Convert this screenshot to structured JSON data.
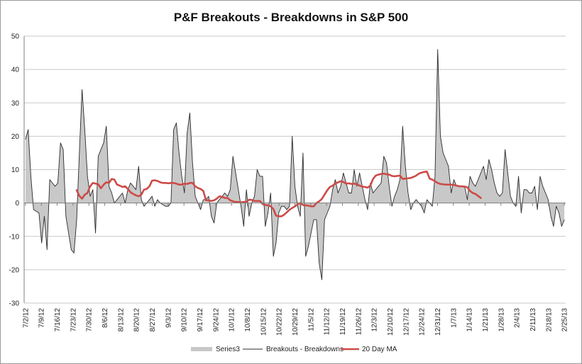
{
  "chart_data": {
    "type": "line",
    "title": "P&F Breakouts - Breakdowns in S&P 500",
    "xlabel": "",
    "ylabel": "",
    "ylim": [
      -30,
      50
    ],
    "yticks": [
      -30,
      -20,
      -10,
      0,
      10,
      20,
      30,
      40,
      50
    ],
    "grid": "horizontal",
    "legend_position": "bottom",
    "colors": {
      "area_fill": "#c8c8c8",
      "area_stroke": "#9a9a9a",
      "line": "#2b2b2b",
      "ma": "#cc4b47",
      "grid": "#c9c9c9",
      "axis": "#808080"
    },
    "x_labels": [
      "7/2/12",
      "7/9/12",
      "7/16/12",
      "7/23/12",
      "7/30/12",
      "8/6/12",
      "8/13/12",
      "8/20/12",
      "8/27/12",
      "9/3/12",
      "9/10/12",
      "9/17/12",
      "9/24/12",
      "10/1/12",
      "10/8/12",
      "10/15/12",
      "10/22/12",
      "10/29/12",
      "11/5/12",
      "11/12/12",
      "11/19/12",
      "11/26/12",
      "12/3/12",
      "12/10/12",
      "12/17/12",
      "12/24/12",
      "12/31/12",
      "1/7/13",
      "1/14/13",
      "1/21/13",
      "1/28/13",
      "2/4/13",
      "2/11/13",
      "2/18/13",
      "2/25/13"
    ],
    "series": [
      {
        "name": "Series3",
        "kind": "area",
        "values": [
          19,
          22,
          8,
          -2,
          -2.5,
          -3,
          -12,
          -4,
          -14,
          7,
          6,
          5,
          6,
          18,
          16,
          -4,
          -9,
          -14,
          -15,
          -5,
          15,
          34,
          22,
          8,
          2,
          4,
          -9,
          14,
          16,
          18,
          23,
          5,
          3,
          0,
          1,
          2,
          3,
          0,
          4,
          6,
          5,
          4,
          11,
          1,
          -1,
          0,
          1,
          2,
          -1,
          1,
          0,
          -0.5,
          -1,
          -1,
          0,
          22,
          24,
          15,
          8,
          3,
          21,
          27,
          12,
          2,
          0,
          -2,
          1,
          1,
          2,
          -4,
          -6,
          0,
          1,
          2,
          3,
          2,
          4,
          14,
          9,
          4,
          -1,
          -7,
          4,
          -4,
          0,
          2,
          10,
          8,
          8,
          -7,
          -3,
          3,
          -16,
          -12,
          -3,
          -1,
          -1,
          -2,
          -1,
          20,
          5,
          -1,
          -4,
          15,
          -16,
          -13,
          -9,
          -5,
          -5,
          -18,
          -23,
          -5,
          -3,
          -1,
          4,
          7,
          3,
          5,
          9,
          6,
          3,
          3,
          10,
          5,
          9,
          5,
          1,
          -2,
          6,
          3,
          4,
          5,
          6,
          14,
          12,
          5,
          -1,
          2,
          4,
          7,
          23,
          11,
          3,
          -2,
          0,
          1,
          0,
          -1,
          -3,
          1,
          0,
          -1,
          8,
          46,
          20,
          15,
          13,
          11,
          3,
          7,
          5,
          5,
          5,
          5,
          1,
          8,
          6,
          5,
          7,
          9,
          11,
          7,
          13,
          10,
          6,
          3,
          2,
          3,
          16,
          9,
          2,
          0,
          -1,
          8,
          -3,
          4,
          4,
          3,
          3,
          5,
          -2,
          8,
          5,
          3,
          1,
          -4,
          -7,
          -1,
          -3,
          -7,
          -5
        ]
      },
      {
        "name": "Breakouts - Breakdowns",
        "kind": "line",
        "values": [
          19,
          22,
          8,
          -2,
          -2.5,
          -3,
          -12,
          -4,
          -14,
          7,
          6,
          5,
          6,
          18,
          16,
          -4,
          -9,
          -14,
          -15,
          -5,
          15,
          34,
          22,
          8,
          2,
          4,
          -9,
          14,
          16,
          18,
          23,
          5,
          3,
          0,
          1,
          2,
          3,
          0,
          4,
          6,
          5,
          4,
          11,
          1,
          -1,
          0,
          1,
          2,
          -1,
          1,
          0,
          -0.5,
          -1,
          -1,
          0,
          22,
          24,
          15,
          8,
          3,
          21,
          27,
          12,
          2,
          0,
          -2,
          1,
          1,
          2,
          -4,
          -6,
          0,
          1,
          2,
          3,
          2,
          4,
          14,
          9,
          4,
          -1,
          -7,
          4,
          -4,
          0,
          2,
          10,
          8,
          8,
          -7,
          -3,
          3,
          -16,
          -12,
          -3,
          -1,
          -1,
          -2,
          -1,
          20,
          5,
          -1,
          -4,
          15,
          -16,
          -13,
          -9,
          -5,
          -5,
          -18,
          -23,
          -5,
          -3,
          -1,
          4,
          7,
          3,
          5,
          9,
          6,
          3,
          3,
          10,
          5,
          9,
          5,
          1,
          -2,
          6,
          3,
          4,
          5,
          6,
          14,
          12,
          5,
          -1,
          2,
          4,
          7,
          23,
          11,
          3,
          -2,
          0,
          1,
          0,
          -1,
          -3,
          1,
          0,
          -1,
          8,
          46,
          20,
          15,
          13,
          11,
          3,
          7,
          5,
          5,
          5,
          5,
          1,
          8,
          6,
          5,
          7,
          9,
          11,
          7,
          13,
          10,
          6,
          3,
          2,
          3,
          16,
          9,
          2,
          0,
          -1,
          8,
          -3,
          4,
          4,
          3,
          3,
          5,
          -2,
          8,
          5,
          3,
          1,
          -4,
          -7,
          -1,
          -3,
          -7,
          -5
        ]
      },
      {
        "name": "20 Day MA",
        "kind": "line",
        "start_index": 19,
        "values": [
          3.8,
          2.1,
          1.3,
          2.5,
          3,
          5,
          6,
          5.8,
          5.6,
          4.4,
          5.5,
          6.2,
          6,
          7.2,
          7,
          5.5,
          5.2,
          4.8,
          5,
          4.2,
          3.2,
          2.7,
          2.3,
          2,
          2.5,
          4,
          4.2,
          5,
          6.7,
          6.8,
          6.6,
          6.2,
          6,
          6,
          5.9,
          6,
          6,
          5.8,
          5.5,
          5.5,
          5.8,
          5.7,
          6,
          6,
          5,
          4.5,
          4.2,
          3.6,
          0.8,
          0.8,
          0.6,
          0.8,
          1.3,
          2,
          1.8,
          1.5,
          1.5,
          0.8,
          0.5,
          0.3,
          0.3,
          0.2,
          0.3,
          0.3,
          1,
          0.9,
          0.6,
          0.6,
          0.6,
          -0.3,
          -0.6,
          -0.7,
          -1,
          -1.8,
          -3.8,
          -4,
          -4,
          -3.5,
          -2.8,
          -2,
          -1.5,
          -1,
          -0.4,
          0,
          -0.6,
          -0.7,
          -0.8,
          -1,
          -1,
          0,
          0.5,
          1.2,
          2.5,
          3.8,
          4.8,
          5.2,
          5.8,
          6.2,
          6.5,
          6.3,
          5.8,
          5.9,
          5.7,
          5.8,
          5.6,
          5.2,
          4.9,
          4.8,
          4.6,
          5.2,
          7.2,
          8.2,
          8.5,
          8.7,
          8.8,
          8.6,
          8.5,
          8.1,
          8,
          8.1,
          8.2,
          7.2,
          7.3,
          7.4,
          7.5,
          7.8,
          8.2,
          8.8,
          9.1,
          9.3,
          9.4,
          7.3,
          7,
          6.5,
          6,
          5.7,
          5.6,
          5.5,
          5.5,
          5.5,
          5.4,
          5.2,
          5,
          5,
          4.9,
          4.7,
          3.6,
          3,
          2.7,
          2.1,
          1.5
        ]
      }
    ]
  }
}
